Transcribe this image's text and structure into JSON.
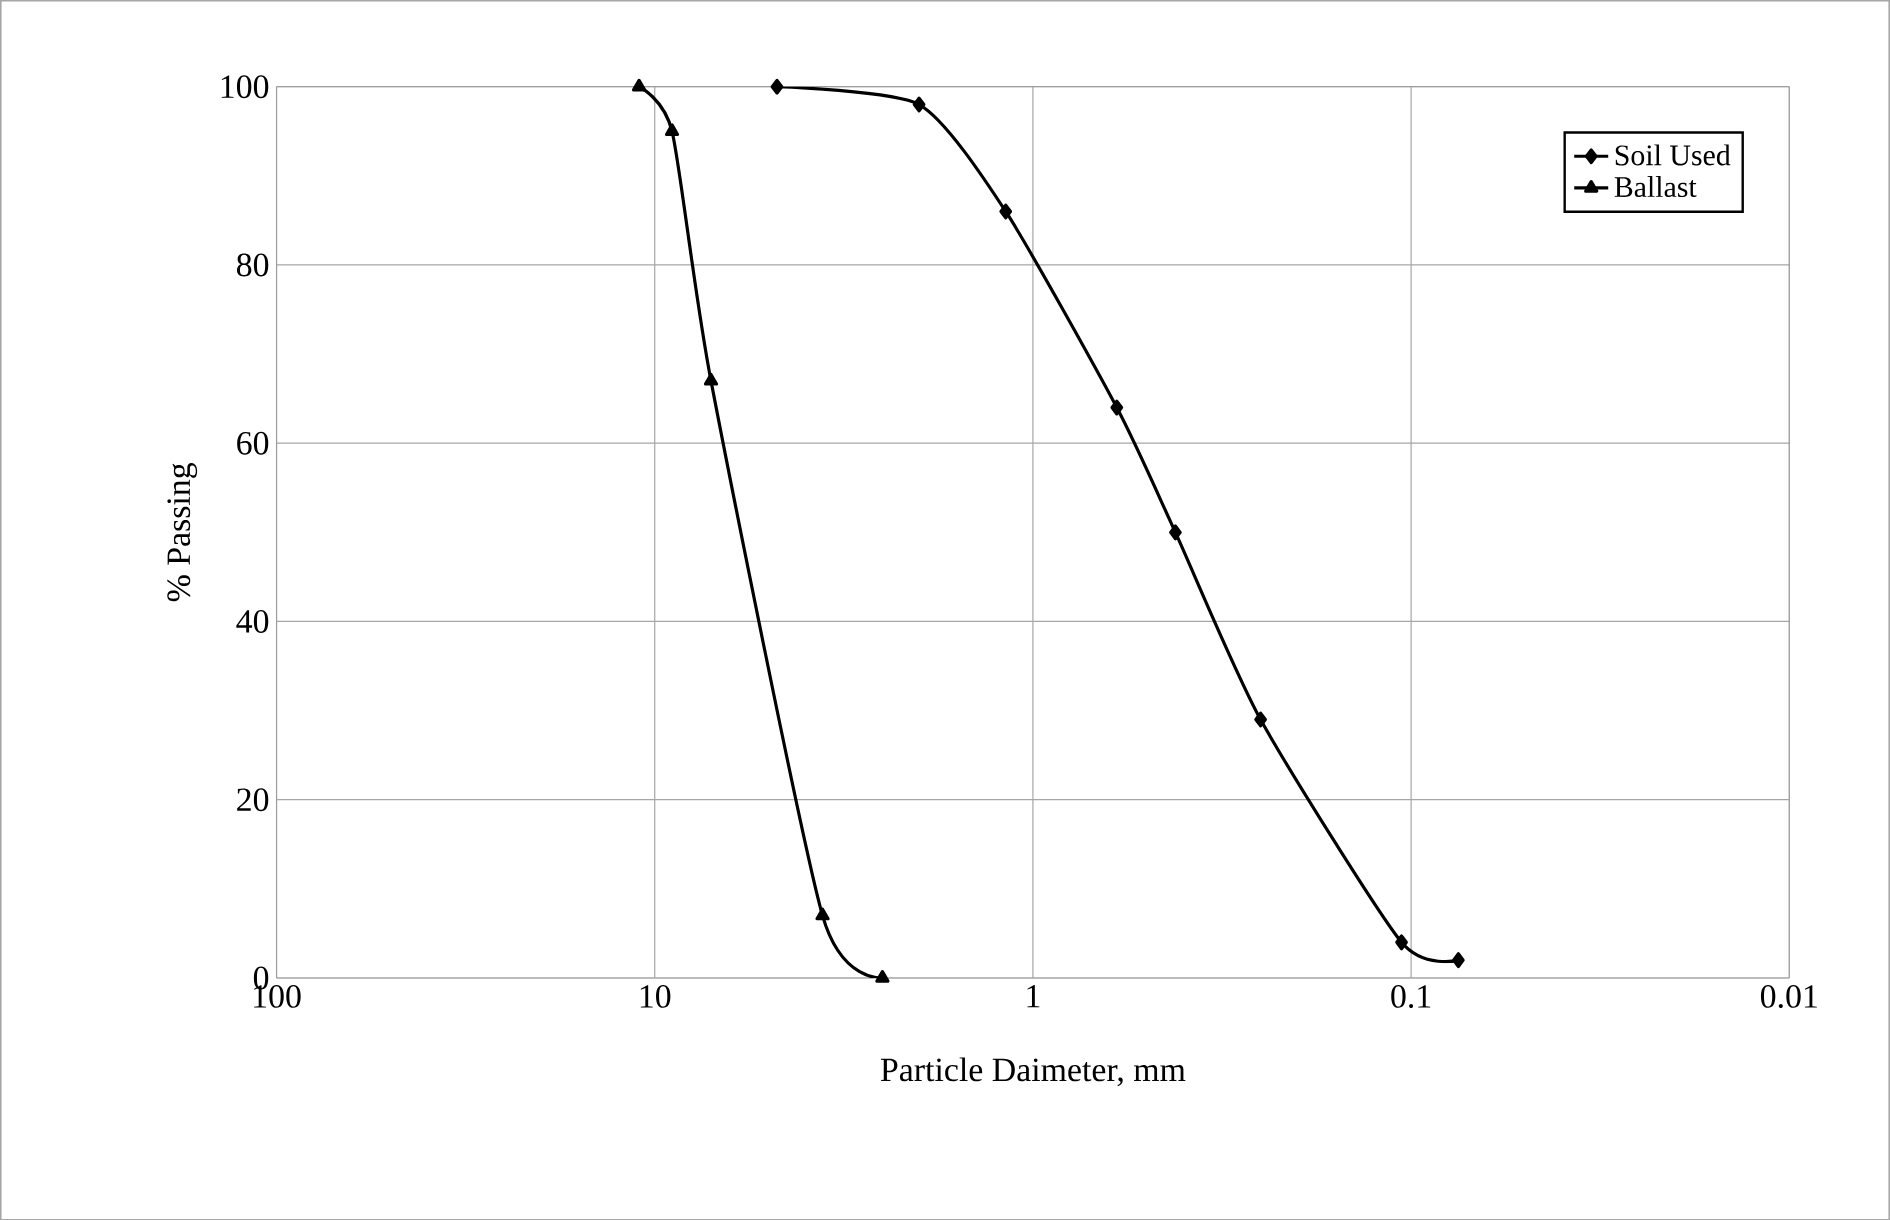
{
  "chart_data": {
    "type": "line",
    "xlabel": "Particle Daimeter, mm",
    "ylabel": "% Passing",
    "log": "x",
    "xlim": [
      100,
      0.01
    ],
    "xticks": [
      100,
      10,
      1,
      0.1,
      0.01
    ],
    "ylim": [
      0,
      100
    ],
    "yticks": [
      0,
      20,
      40,
      60,
      80,
      100
    ],
    "grid": true,
    "legend": "top right",
    "line_style": "solid",
    "series": [
      {
        "name": "Soil Used",
        "color": "#000000",
        "marker": "diamond",
        "x": [
          4.75,
          2.0,
          1.18,
          0.6,
          0.42,
          0.25,
          0.106,
          0.075
        ],
        "values": [
          100,
          98,
          86,
          64,
          50,
          29,
          4,
          2
        ]
      },
      {
        "name": "Ballast",
        "color": "#000000",
        "marker": "triangle",
        "x": [
          11,
          9,
          7.1,
          3.6,
          2.5
        ],
        "values": [
          100,
          95,
          67,
          7,
          0
        ]
      }
    ]
  }
}
